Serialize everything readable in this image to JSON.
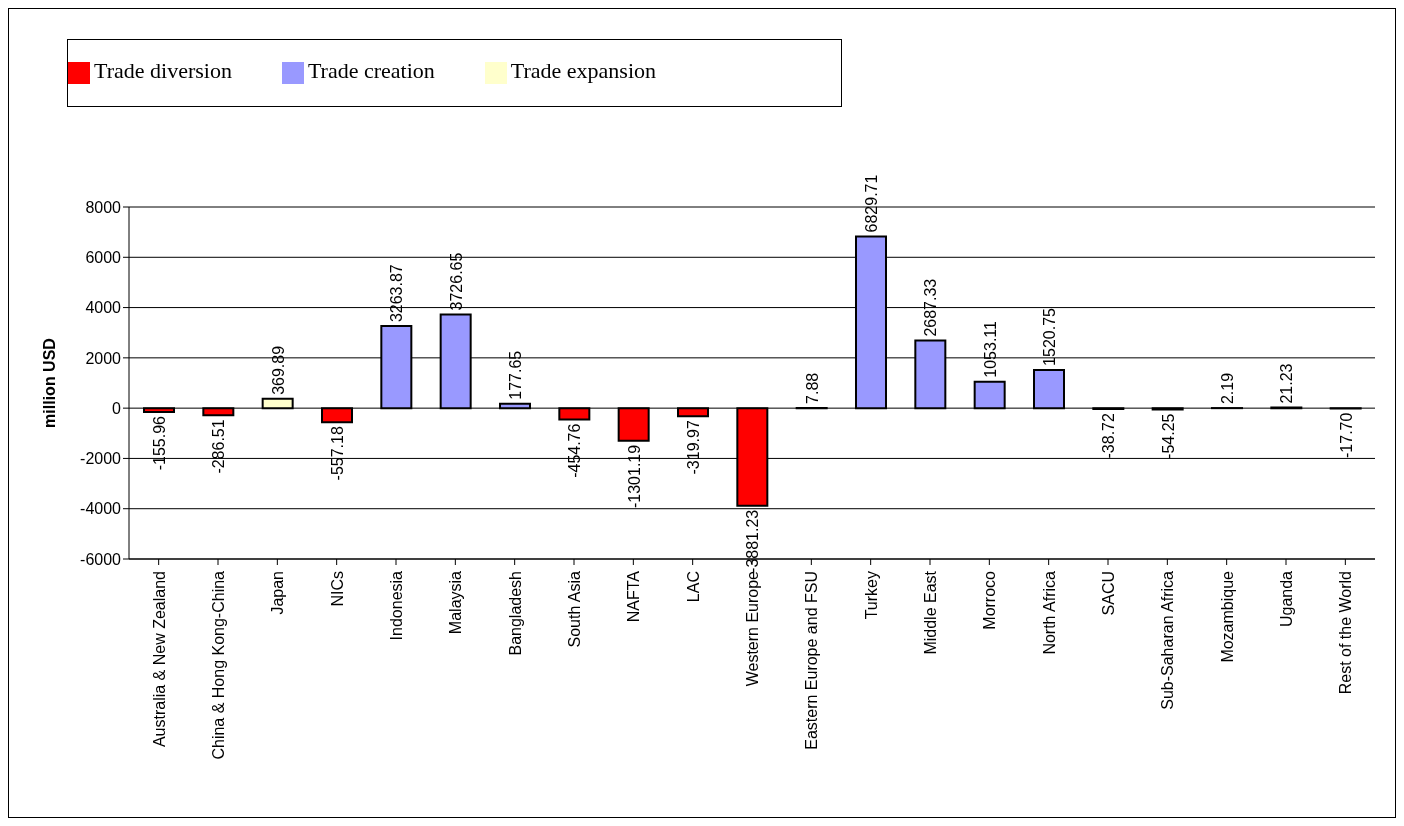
{
  "chart_data": {
    "type": "bar",
    "ylabel": "million USD",
    "categories": [
      "Australia & New Zealand",
      "China & Hong Kong-China",
      "Japan",
      "NICs",
      "Indonesia",
      "Malaysia",
      "Bangladesh",
      "South Asia",
      "NAFTA",
      "LAC",
      "Western Europe",
      "Eastern Europe and FSU",
      "Turkey",
      "Middle East",
      "Morroco",
      "North Africa",
      "SACU",
      "Sub-Saharan Africa",
      "Mozambique",
      "Uganda",
      "Rest of the World"
    ],
    "series": [
      {
        "name": "Trade diversion",
        "color": "#ff0000",
        "values": [
          -155.96,
          -286.51,
          null,
          -557.18,
          null,
          null,
          null,
          -454.76,
          -1301.19,
          -319.97,
          -3881.23,
          null,
          null,
          null,
          null,
          null,
          -38.72,
          -54.25,
          null,
          null,
          -17.7
        ],
        "value_labels": [
          "-155.96",
          "-286.51",
          null,
          "-557.18",
          null,
          null,
          null,
          "-454.76",
          "-1301.19",
          "-319.97",
          "-3881.23",
          null,
          null,
          null,
          null,
          null,
          "-38.72",
          "-54.25",
          null,
          null,
          "-17.70"
        ]
      },
      {
        "name": "Trade creation",
        "color": "#9999ff",
        "values": [
          null,
          null,
          null,
          null,
          3263.87,
          3726.65,
          177.65,
          null,
          null,
          null,
          null,
          7.88,
          6829.71,
          2687.33,
          1053.11,
          1520.75,
          null,
          null,
          2.19,
          21.23,
          null
        ],
        "value_labels": [
          null,
          null,
          null,
          null,
          "3263.87",
          "3726.65",
          "177.65",
          null,
          null,
          null,
          null,
          "7.88",
          "6829.71",
          "2687.33",
          "1053.11",
          "1520.75",
          null,
          null,
          "2.19",
          "21.23",
          null
        ]
      },
      {
        "name": "Trade expansion",
        "color": "#ffffcc",
        "values": [
          null,
          null,
          369.89,
          null,
          null,
          null,
          null,
          null,
          null,
          null,
          null,
          null,
          null,
          null,
          null,
          null,
          null,
          null,
          null,
          null,
          null
        ],
        "value_labels": [
          null,
          null,
          "369.89",
          null,
          null,
          null,
          null,
          null,
          null,
          null,
          null,
          null,
          null,
          null,
          null,
          null,
          null,
          null,
          null,
          null,
          null
        ]
      }
    ],
    "ylim": [
      -6000,
      8000
    ],
    "yticks": [
      -6000,
      -4000,
      -2000,
      0,
      2000,
      4000,
      6000,
      8000
    ],
    "grid": "y",
    "legend": "top left"
  }
}
